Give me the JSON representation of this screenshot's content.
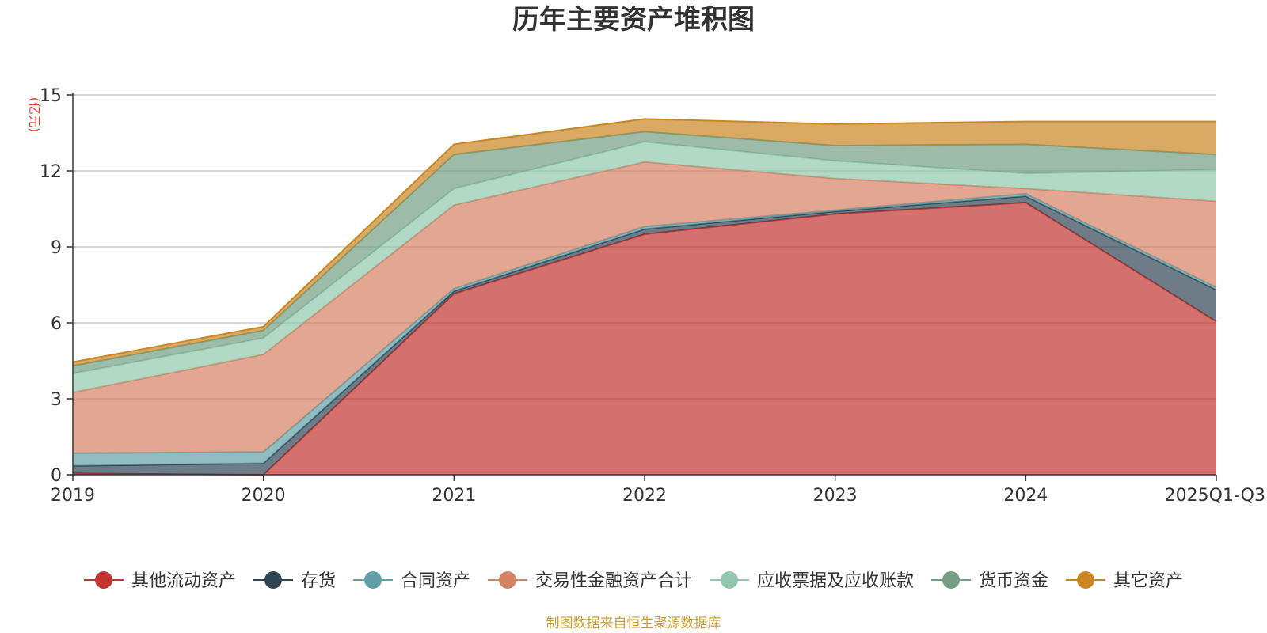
{
  "chart_data": {
    "type": "area",
    "stacked": true,
    "title": "历年主要资产堆积图",
    "unit_label": "(亿元)",
    "categories": [
      "2019",
      "2020",
      "2021",
      "2022",
      "2023",
      "2024",
      "2025Q1-Q3"
    ],
    "ylim": [
      0,
      15
    ],
    "yticks": [
      "0",
      "3",
      "6",
      "9",
      "12",
      "15"
    ],
    "grid": true,
    "legend_position": "bottom",
    "series": [
      {
        "name": "其他流动资产",
        "color": "#c23531",
        "values": [
          0.05,
          0.0,
          7.15,
          9.5,
          10.3,
          10.75,
          6.05
        ]
      },
      {
        "name": "存货",
        "color": "#2f4554",
        "values": [
          0.3,
          0.45,
          0.1,
          0.2,
          0.1,
          0.25,
          1.25
        ]
      },
      {
        "name": "合同资产",
        "color": "#61a0a8",
        "values": [
          0.5,
          0.45,
          0.1,
          0.1,
          0.05,
          0.1,
          0.1
        ]
      },
      {
        "name": "交易性金融资产合计",
        "color": "#d48265",
        "values": [
          2.4,
          3.85,
          3.3,
          2.55,
          1.25,
          0.2,
          3.4
        ]
      },
      {
        "name": "应收票据及应收账款",
        "color": "#91c7ae",
        "values": [
          0.75,
          0.65,
          0.65,
          0.8,
          0.7,
          0.6,
          1.25
        ]
      },
      {
        "name": "货币资金",
        "color": "#749f83",
        "values": [
          0.3,
          0.3,
          1.35,
          0.4,
          0.6,
          1.15,
          0.6
        ]
      },
      {
        "name": "其它资产",
        "color": "#ca8622",
        "values": [
          0.15,
          0.15,
          0.4,
          0.5,
          0.85,
          0.9,
          1.3
        ]
      }
    ],
    "source_note": "制图数据来自恒生聚源数据库"
  }
}
